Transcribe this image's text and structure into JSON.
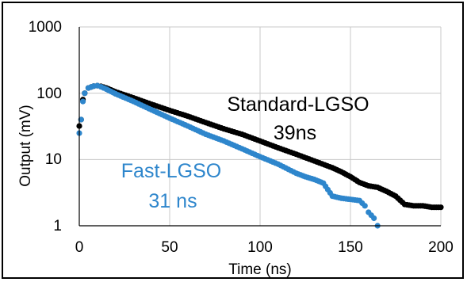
{
  "chart_data": {
    "type": "scatter",
    "xlabel": "Time (ns)",
    "ylabel": "Output (mV)",
    "xlim": [
      0,
      200
    ],
    "ylim": [
      1,
      1000
    ],
    "yscale": "log",
    "grid": true,
    "x_ticks": [
      "0",
      "50",
      "100",
      "150",
      "200"
    ],
    "y_ticks": [
      "1",
      "10",
      "100",
      "1000"
    ],
    "series": [
      {
        "name": "Standard-LGSO",
        "color": "#000000",
        "x": [
          0,
          1,
          2,
          3,
          5,
          8,
          10,
          12,
          15,
          20,
          30,
          40,
          50,
          60,
          70,
          80,
          90,
          100,
          110,
          120,
          130,
          140,
          145,
          150,
          155,
          160,
          165,
          170,
          175,
          180,
          185,
          190,
          195,
          200
        ],
        "y": [
          32,
          40,
          80,
          100,
          120,
          128,
          130,
          127,
          120,
          105,
          85,
          68,
          55,
          45,
          36,
          29,
          24,
          19,
          15,
          12,
          9.5,
          7.5,
          6.5,
          5.5,
          4.5,
          4.0,
          3.8,
          3.3,
          2.8,
          2.1,
          2.0,
          2.0,
          1.9,
          1.9
        ]
      },
      {
        "name": "Fast-LGSO",
        "color": "#2e86cc",
        "x": [
          0,
          1,
          2,
          3,
          5,
          8,
          10,
          12,
          15,
          20,
          30,
          40,
          50,
          60,
          70,
          80,
          90,
          100,
          110,
          120,
          125,
          130,
          135,
          140,
          145,
          150,
          155,
          158,
          160,
          163,
          165
        ],
        "y": [
          25,
          40,
          75,
          100,
          120,
          128,
          130,
          125,
          115,
          98,
          75,
          56,
          42,
          32,
          24,
          19,
          14.5,
          11,
          8.5,
          6.2,
          5.5,
          5.0,
          4.4,
          2.8,
          2.6,
          2.5,
          2.4,
          2.0,
          1.6,
          1.3,
          1.0
        ]
      }
    ],
    "annotations": [
      {
        "text": "Standard-LGSO",
        "color": "#000000"
      },
      {
        "text": "39ns",
        "color": "#000000"
      },
      {
        "text": "Fast-LGSO",
        "color": "#2e86cc"
      },
      {
        "text": "31 ns",
        "color": "#2e86cc"
      }
    ]
  }
}
